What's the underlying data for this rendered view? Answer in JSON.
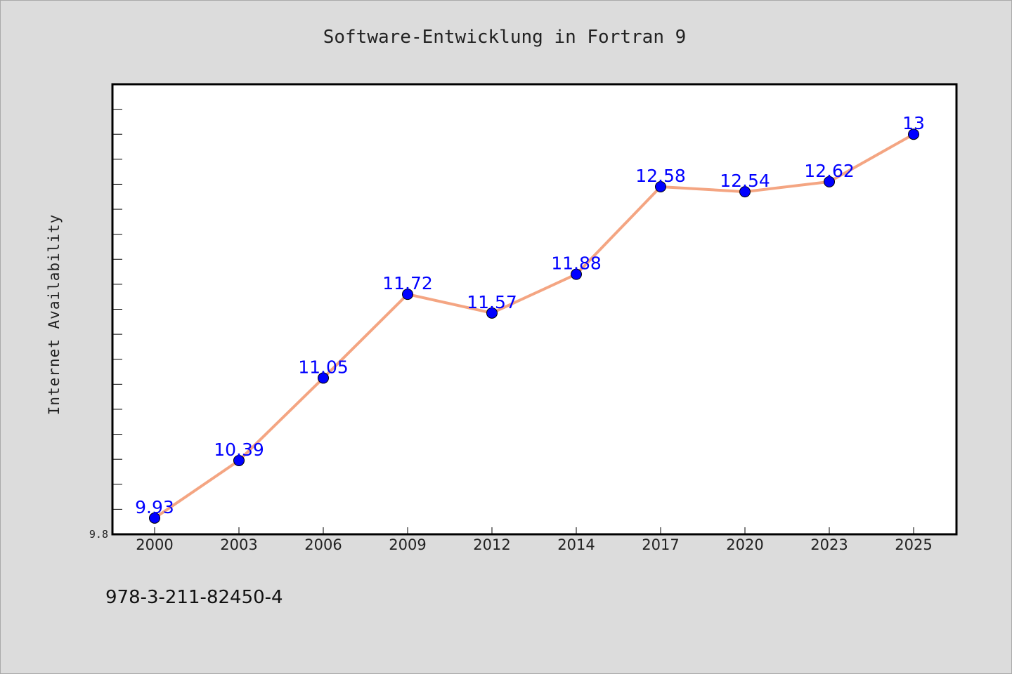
{
  "footer_text": "978-3-211-82450-4",
  "chart_data": {
    "type": "line",
    "title": "Software-Entwicklung in Fortran 9",
    "xlabel": "",
    "ylabel": "Internet Availability",
    "categories": [
      "2000",
      "2003",
      "2006",
      "2009",
      "2012",
      "2014",
      "2017",
      "2020",
      "2023",
      "2025"
    ],
    "series": [
      {
        "name": "",
        "values": [
          9.93,
          10.39,
          11.05,
          11.72,
          11.57,
          11.88,
          12.58,
          12.54,
          12.62,
          13
        ],
        "labels": [
          "9.93",
          "10.39",
          "11.05",
          "11.72",
          "11.57",
          "11.88",
          "12.58",
          "12.54",
          "12.62",
          "13"
        ]
      }
    ],
    "ylim": [
      9.8,
      13.4
    ],
    "ytick_labels": [
      "9.8"
    ],
    "grid": false,
    "legend": "none",
    "colors": {
      "line": "#f4a582",
      "marker": "#0000ff",
      "label": "#0000ff",
      "plot_bg": "#ffffff",
      "page_bg": "#dcdcdc"
    }
  }
}
